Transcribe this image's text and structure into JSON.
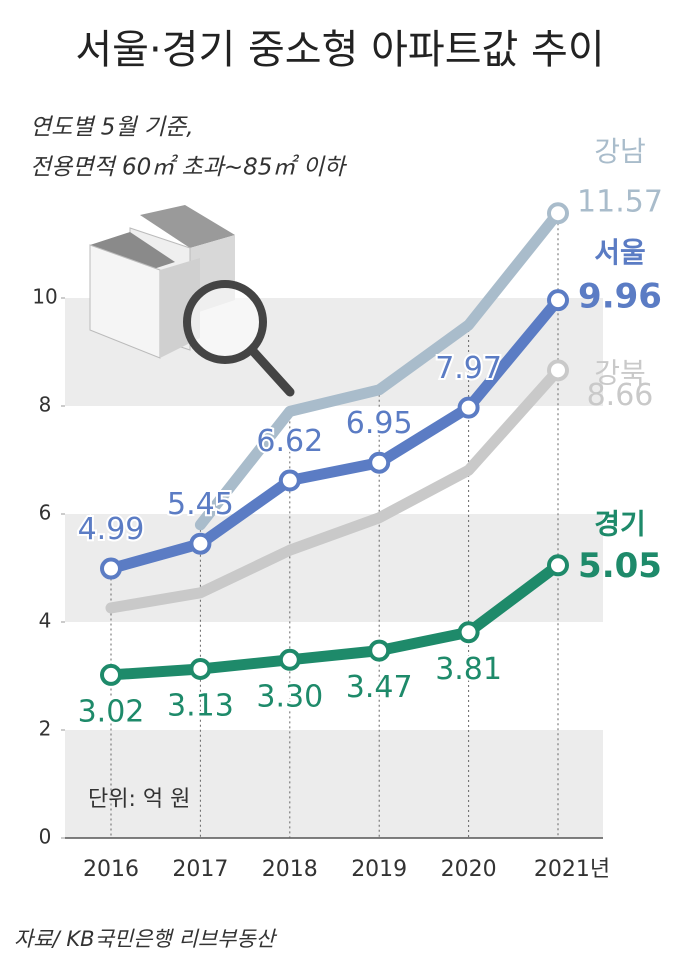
{
  "chart_data": {
    "type": "line",
    "title": "서울·경기 중소형 아파트값 추이",
    "subtitle": [
      "연도별 5월 기준,",
      "전용면적 60㎡ 초과~85㎡ 이하"
    ],
    "unit_note": "단위: 억 원",
    "source": "자료/ KB국민은행 리브부동산",
    "categories": [
      "2016",
      "2017",
      "2018",
      "2019",
      "2020",
      "2021년"
    ],
    "ylim": [
      0,
      10.5
    ],
    "yticks": [
      0,
      2,
      4,
      6,
      8,
      10
    ],
    "series": [
      {
        "name": "강북",
        "color": "#c9c9c9",
        "values": [
          4.26,
          4.54,
          5.33,
          5.93,
          6.81,
          8.66
        ],
        "value_labels": [
          null,
          null,
          null,
          null,
          null,
          "8.66"
        ]
      },
      {
        "name": "강남",
        "color": "#a9bccb",
        "values": [
          null,
          5.8,
          7.9,
          8.3,
          9.5,
          11.57
        ],
        "value_labels": [
          null,
          null,
          null,
          null,
          null,
          "11.57"
        ]
      },
      {
        "name": "서울",
        "color": "#5b7cc4",
        "values": [
          4.99,
          5.45,
          6.62,
          6.95,
          7.97,
          9.96
        ],
        "value_labels": [
          "4.99",
          "5.45",
          "6.62",
          "6.95",
          "7.97",
          "9.96"
        ]
      },
      {
        "name": "경기",
        "color": "#1e8a6a",
        "values": [
          3.02,
          3.13,
          3.3,
          3.47,
          3.81,
          5.05
        ],
        "value_labels": [
          "3.02",
          "3.13",
          "3.30",
          "3.47",
          "3.81",
          "5.05"
        ]
      }
    ]
  }
}
